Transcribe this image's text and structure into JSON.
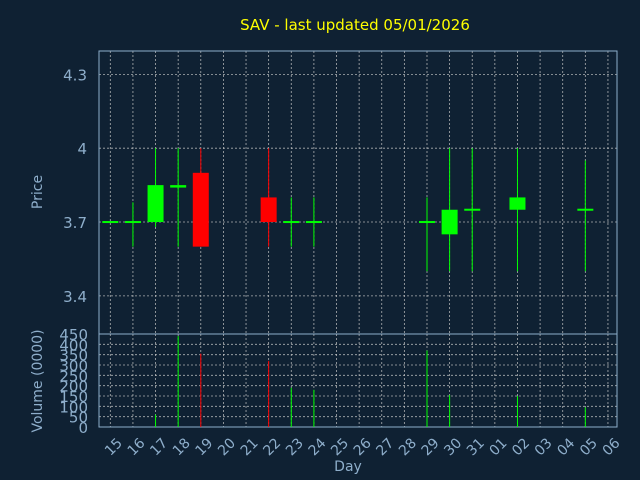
{
  "colors": {
    "background": "#0f2133",
    "up": "#00ff00",
    "down": "#ff0000",
    "title": "#ffff00",
    "text": "#8eaecb",
    "grid": "#c8c8c8"
  },
  "chart_data": {
    "type": "candlestick",
    "title": "SAV - last updated 05/01/2026",
    "xlabel": "Day",
    "ylabel": "Price",
    "volume_label": "Volume (0000)",
    "price_ticks": [
      "3.4",
      "3.7",
      "4",
      "4.3"
    ],
    "price_ylim": [
      3.245,
      4.395
    ],
    "volume_ticks": [
      "0",
      "50",
      "100",
      "150",
      "200",
      "250",
      "300",
      "350",
      "400",
      "450"
    ],
    "volume_ylim": [
      0,
      450
    ],
    "grid": true,
    "days": [
      "15",
      "16",
      "17",
      "18",
      "19",
      "20",
      "21",
      "22",
      "23",
      "24",
      "25",
      "26",
      "27",
      "28",
      "29",
      "30",
      "31",
      "01",
      "02",
      "03",
      "04",
      "05",
      "06"
    ],
    "candles": [
      {
        "day": "15",
        "open": 3.7,
        "high": 3.7,
        "low": 3.7,
        "close": 3.7,
        "volume": 0
      },
      {
        "day": "16",
        "open": 3.7,
        "high": 3.78,
        "low": 3.6,
        "close": 3.7,
        "volume": 0
      },
      {
        "day": "17",
        "open": 3.7,
        "high": 4.0,
        "low": 3.68,
        "close": 3.85,
        "volume": 60
      },
      {
        "day": "18",
        "open": 3.84,
        "high": 4.0,
        "low": 3.6,
        "close": 3.85,
        "volume": 440
      },
      {
        "day": "19",
        "open": 3.9,
        "high": 4.0,
        "low": 3.6,
        "close": 3.6,
        "volume": 355
      },
      {
        "day": "20",
        "open": null,
        "high": null,
        "low": null,
        "close": null,
        "volume": 0
      },
      {
        "day": "21",
        "open": null,
        "high": null,
        "low": null,
        "close": null,
        "volume": 0
      },
      {
        "day": "22",
        "open": 3.8,
        "high": 4.0,
        "low": 3.6,
        "close": 3.7,
        "volume": 320
      },
      {
        "day": "23",
        "open": 3.7,
        "high": 3.8,
        "low": 3.6,
        "close": 3.7,
        "volume": 190
      },
      {
        "day": "24",
        "open": 3.7,
        "high": 3.8,
        "low": 3.6,
        "close": 3.7,
        "volume": 180
      },
      {
        "day": "25",
        "open": null,
        "high": null,
        "low": null,
        "close": null,
        "volume": 0
      },
      {
        "day": "26",
        "open": null,
        "high": null,
        "low": null,
        "close": null,
        "volume": 0
      },
      {
        "day": "27",
        "open": null,
        "high": null,
        "low": null,
        "close": null,
        "volume": 0
      },
      {
        "day": "28",
        "open": null,
        "high": null,
        "low": null,
        "close": null,
        "volume": 0
      },
      {
        "day": "29",
        "open": 3.7,
        "high": 3.8,
        "low": 3.5,
        "close": 3.7,
        "volume": 370
      },
      {
        "day": "30",
        "open": 3.65,
        "high": 4.0,
        "low": 3.5,
        "close": 3.75,
        "volume": 155
      },
      {
        "day": "31",
        "open": 3.75,
        "high": 4.0,
        "low": 3.5,
        "close": 3.75,
        "volume": 0
      },
      {
        "day": "01",
        "open": null,
        "high": null,
        "low": null,
        "close": null,
        "volume": 0
      },
      {
        "day": "02",
        "open": 3.75,
        "high": 4.0,
        "low": 3.5,
        "close": 3.8,
        "volume": 150
      },
      {
        "day": "03",
        "open": null,
        "high": null,
        "low": null,
        "close": null,
        "volume": 0
      },
      {
        "day": "04",
        "open": null,
        "high": null,
        "low": null,
        "close": null,
        "volume": 0
      },
      {
        "day": "05",
        "open": 3.75,
        "high": 3.95,
        "low": 3.5,
        "close": 3.75,
        "volume": 95
      },
      {
        "day": "06",
        "open": null,
        "high": null,
        "low": null,
        "close": null,
        "volume": 0
      }
    ]
  }
}
